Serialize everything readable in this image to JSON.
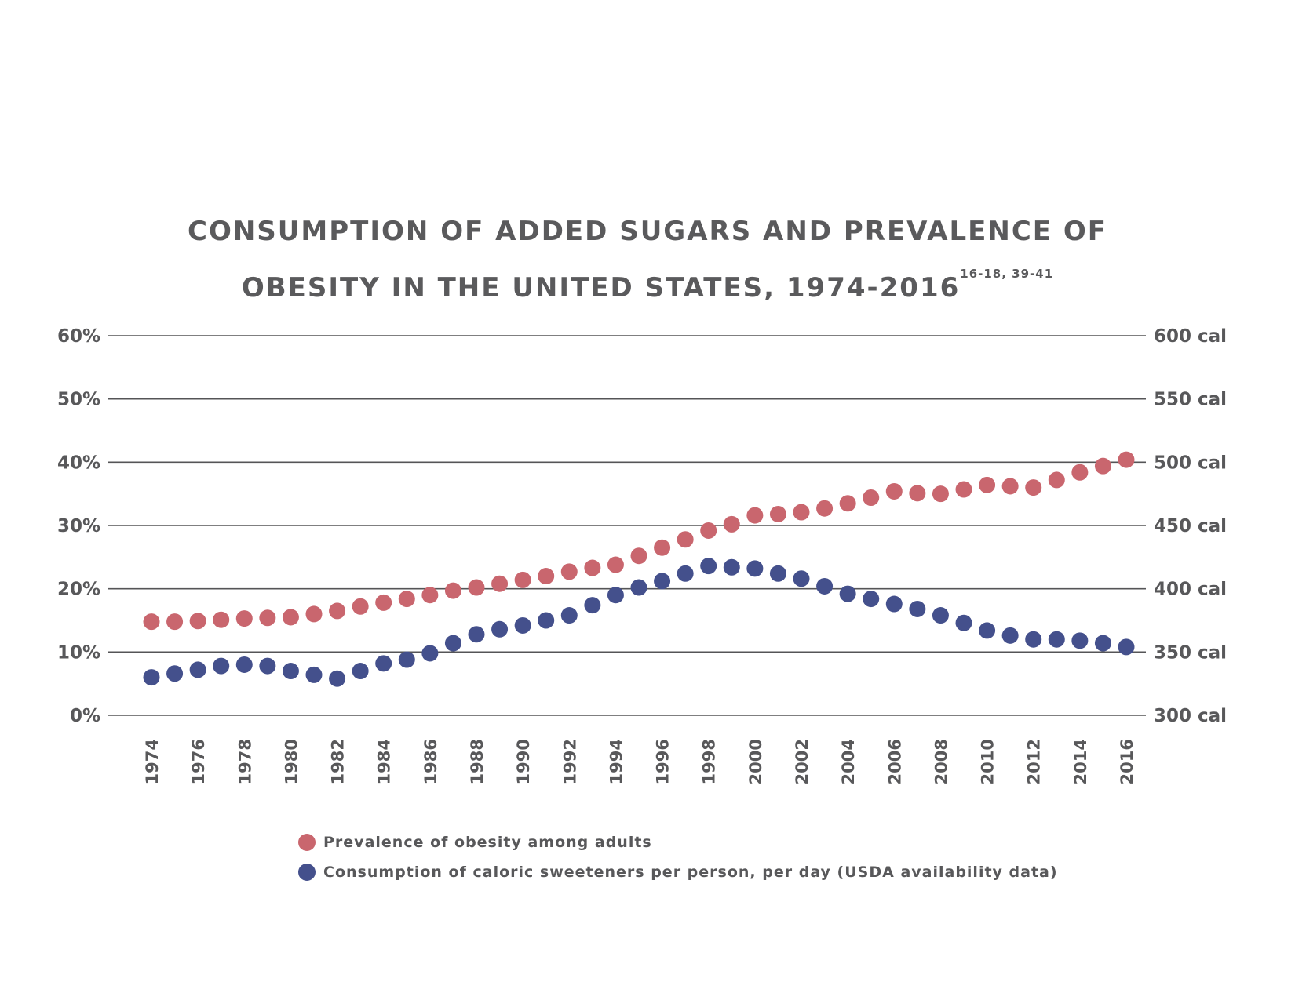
{
  "chart_data": {
    "type": "scatter",
    "title_line1": "CONSUMPTION OF ADDED SUGARS AND PREVALENCE OF",
    "title_line2": "OBESITY IN THE UNITED STATES, 1974-2016",
    "title_refs": "16-18, 39-41",
    "x": [
      1974,
      1975,
      1976,
      1977,
      1978,
      1979,
      1980,
      1981,
      1982,
      1983,
      1984,
      1985,
      1986,
      1987,
      1988,
      1989,
      1990,
      1991,
      1992,
      1993,
      1994,
      1995,
      1996,
      1997,
      1998,
      1999,
      2000,
      2001,
      2002,
      2003,
      2004,
      2005,
      2006,
      2007,
      2008,
      2009,
      2010,
      2011,
      2012,
      2013,
      2014,
      2015,
      2016
    ],
    "x_tick_labels": [
      "1974",
      "1976",
      "1978",
      "1980",
      "1982",
      "1984",
      "1986",
      "1988",
      "1990",
      "1992",
      "1994",
      "1996",
      "1998",
      "2000",
      "2002",
      "2004",
      "2006",
      "2008",
      "2010",
      "2012",
      "2014",
      "2016"
    ],
    "y_left": {
      "ylim": [
        0,
        60
      ],
      "tick_labels": [
        "0%",
        "10%",
        "20%",
        "30%",
        "40%",
        "50%",
        "60%"
      ]
    },
    "y_right": {
      "ylim": [
        300,
        600
      ],
      "tick_labels": [
        "300 cal",
        "350 cal",
        "400 cal",
        "450 cal",
        "500 cal",
        "550 cal",
        "600 cal"
      ]
    },
    "grid": true,
    "legend_position": "bottom",
    "series": [
      {
        "name": "Prevalence of obesity among adults",
        "axis": "left",
        "color": "#c9666e",
        "values": [
          14.8,
          14.8,
          14.9,
          15.1,
          15.3,
          15.4,
          15.5,
          16.0,
          16.5,
          17.2,
          17.8,
          18.4,
          19.0,
          19.7,
          20.2,
          20.8,
          21.4,
          22.0,
          22.7,
          23.3,
          23.8,
          25.2,
          26.5,
          27.8,
          29.2,
          30.2,
          31.6,
          31.8,
          32.1,
          32.7,
          33.5,
          34.4,
          35.4,
          35.1,
          35.0,
          35.7,
          36.4,
          36.2,
          36.0,
          37.2,
          38.4,
          39.4,
          40.4
        ]
      },
      {
        "name": "Consumption of caloric sweeteners per person, per day (USDA availability data)",
        "axis": "right",
        "color": "#44508c",
        "values": [
          330,
          333,
          336,
          339,
          340,
          339,
          335,
          332,
          329,
          335,
          341,
          344,
          349,
          357,
          364,
          368,
          371,
          375,
          379,
          387,
          395,
          401,
          406,
          412,
          418,
          417,
          416,
          412,
          408,
          402,
          396,
          392,
          388,
          384,
          379,
          373,
          367,
          363,
          360,
          360,
          359,
          357,
          354
        ]
      }
    ]
  }
}
